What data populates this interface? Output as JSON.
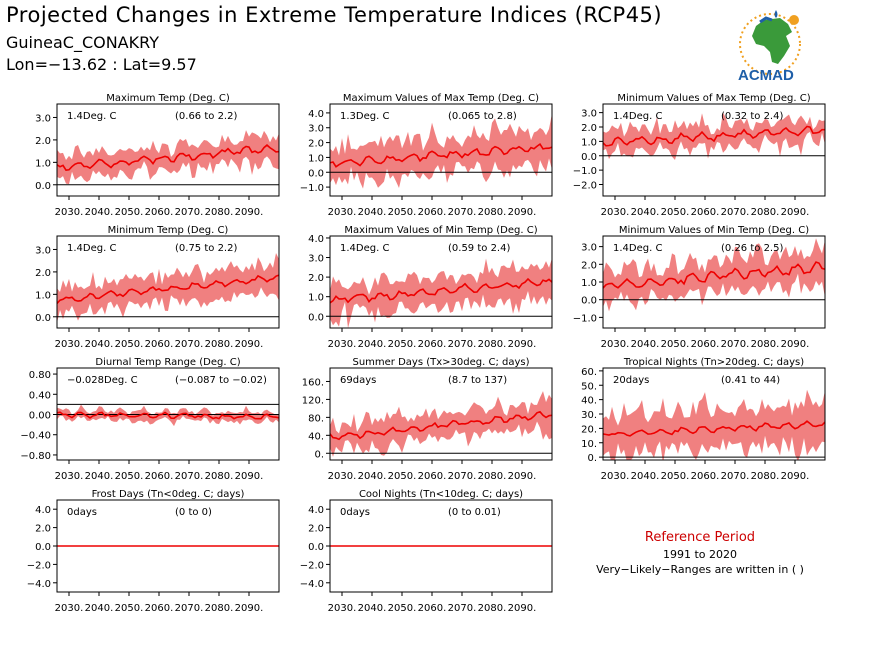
{
  "header": {
    "title": "Projected Changes in Extreme Temperature Indices (RCP45)",
    "station": "GuineaC_CONAKRY",
    "coords": "Lon=−13.62 : Lat=9.57"
  },
  "logo": {
    "text": "ACMAD",
    "icon": "africa-map-icon"
  },
  "reference": {
    "title": "Reference Period",
    "years": "1991 to 2020",
    "note": "Very−Likely−Ranges are written in ( )"
  },
  "colors": {
    "band": "#f08080",
    "line": "#ee0000",
    "zero": "#000000",
    "title_red": "#cc0000",
    "logo_blue": "#1f5fa8",
    "logo_green": "#3a9a3a",
    "logo_orange": "#f0a020"
  },
  "chart_data": [
    {
      "type": "area",
      "title": "Maximum Temp (Deg. C)",
      "median": "1.4Deg. C",
      "range": "(0.66 to 2.2)",
      "x_ticks": [
        "2030.",
        "2040.",
        "2050.",
        "2060.",
        "2070.",
        "2080.",
        "2090."
      ],
      "xlim": [
        2026,
        2100
      ],
      "ylim": [
        -0.5,
        3.6
      ],
      "y_ticks": [
        {
          "v": 0,
          "label": "0.0"
        },
        {
          "v": 1,
          "label": "1.0"
        },
        {
          "v": 2,
          "label": "2.0"
        },
        {
          "v": 3,
          "label": "3.0"
        }
      ],
      "start": 0.75,
      "end": 1.65,
      "wobble": 0.12,
      "width": 0.55,
      "noise": 0.25
    },
    {
      "type": "area",
      "title": "Maximum Values of Max Temp (Deg. C)",
      "median": "1.3Deg. C",
      "range": "(0.065 to 2.8)",
      "x_ticks": [
        "2030.",
        "2040.",
        "2050.",
        "2060.",
        "2070.",
        "2080.",
        "2090."
      ],
      "xlim": [
        2026,
        2100
      ],
      "ylim": [
        -1.6,
        4.6
      ],
      "y_ticks": [
        {
          "v": -1,
          "label": "−1.0"
        },
        {
          "v": 0,
          "label": "0.0"
        },
        {
          "v": 1,
          "label": "1.0"
        },
        {
          "v": 2,
          "label": "2.0"
        },
        {
          "v": 3,
          "label": "3.0"
        },
        {
          "v": 4,
          "label": "4.0"
        }
      ],
      "start": 0.6,
      "end": 1.7,
      "wobble": 0.2,
      "width": 1.2,
      "noise": 0.8
    },
    {
      "type": "area",
      "title": "Minimum Values of Max Temp (Deg. C)",
      "median": "1.4Deg. C",
      "range": "(0.32 to 2.4)",
      "x_ticks": [
        "2030.",
        "2040.",
        "2050.",
        "2060.",
        "2070.",
        "2080.",
        "2090."
      ],
      "xlim": [
        2026,
        2100
      ],
      "ylim": [
        -2.8,
        3.6
      ],
      "y_ticks": [
        {
          "v": -2,
          "label": "−2.0"
        },
        {
          "v": -1,
          "label": "−1.0"
        },
        {
          "v": 0,
          "label": "0.0"
        },
        {
          "v": 1,
          "label": "1.0"
        },
        {
          "v": 2,
          "label": "2.0"
        },
        {
          "v": 3,
          "label": "3.0"
        }
      ],
      "start": 0.9,
      "end": 1.8,
      "wobble": 0.2,
      "width": 0.8,
      "noise": 0.5
    },
    {
      "type": "area",
      "title": "Minimum Temp (Deg. C)",
      "median": "1.4Deg. C",
      "range": "(0.75 to 2.2)",
      "x_ticks": [
        "2030.",
        "2040.",
        "2050.",
        "2060.",
        "2070.",
        "2080.",
        "2090."
      ],
      "xlim": [
        2026,
        2100
      ],
      "ylim": [
        -0.5,
        3.6
      ],
      "y_ticks": [
        {
          "v": 0,
          "label": "0.0"
        },
        {
          "v": 1,
          "label": "1.0"
        },
        {
          "v": 2,
          "label": "2.0"
        },
        {
          "v": 3,
          "label": "3.0"
        }
      ],
      "start": 0.75,
      "end": 1.75,
      "wobble": 0.1,
      "width": 0.6,
      "noise": 0.3
    },
    {
      "type": "area",
      "title": "Maximum Values of Min Temp (Deg. C)",
      "median": "1.4Deg. C",
      "range": "(0.59 to 2.4)",
      "x_ticks": [
        "2030.",
        "2040.",
        "2050.",
        "2060.",
        "2070.",
        "2080.",
        "2090."
      ],
      "xlim": [
        2026,
        2100
      ],
      "ylim": [
        -0.6,
        4.1
      ],
      "y_ticks": [
        {
          "v": 0,
          "label": "0.0"
        },
        {
          "v": 1,
          "label": "1.0"
        },
        {
          "v": 2,
          "label": "2.0"
        },
        {
          "v": 3,
          "label": "3.0"
        },
        {
          "v": 4,
          "label": "4.0"
        }
      ],
      "start": 0.8,
      "end": 1.8,
      "wobble": 0.15,
      "width": 0.8,
      "noise": 0.4
    },
    {
      "type": "area",
      "title": "Minimum Values of Min Temp (Deg. C)",
      "median": "1.4Deg. C",
      "range": "(0.26 to 2.5)",
      "x_ticks": [
        "2030.",
        "2040.",
        "2050.",
        "2060.",
        "2070.",
        "2080.",
        "2090."
      ],
      "xlim": [
        2026,
        2100
      ],
      "ylim": [
        -1.6,
        3.6
      ],
      "y_ticks": [
        {
          "v": -1,
          "label": "−1.0"
        },
        {
          "v": 0,
          "label": "0.0"
        },
        {
          "v": 1,
          "label": "1.0"
        },
        {
          "v": 2,
          "label": "2.0"
        },
        {
          "v": 3,
          "label": "3.0"
        }
      ],
      "start": 0.8,
      "end": 1.85,
      "wobble": 0.2,
      "width": 0.9,
      "noise": 0.4
    },
    {
      "type": "area",
      "title": "Diurnal Temp Range (Deg. C)",
      "median": "−0.028Deg. C",
      "range": "(−0.087 to −0.02)",
      "x_ticks": [
        "2030.",
        "2040.",
        "2050.",
        "2060.",
        "2070.",
        "2080.",
        "2090."
      ],
      "xlim": [
        2026,
        2100
      ],
      "ylim": [
        -0.9,
        0.92
      ],
      "y_ticks": [
        {
          "v": -0.8,
          "label": "−0.80"
        },
        {
          "v": -0.4,
          "label": "−0.40"
        },
        {
          "v": 0,
          "label": "0.00"
        },
        {
          "v": 0.4,
          "label": "0.40"
        },
        {
          "v": 0.8,
          "label": "0.80"
        }
      ],
      "ref_line": 0.2,
      "start": 0.0,
      "end": -0.05,
      "wobble": 0.04,
      "width": 0.09,
      "noise": 0.07
    },
    {
      "type": "area",
      "title": "Summer Days (Tx>30deg. C; days)",
      "median": "69days",
      "range": "(8.7 to 137)",
      "x_ticks": [
        "2030.",
        "2040.",
        "2050.",
        "2060.",
        "2070.",
        "2080.",
        "2090."
      ],
      "xlim": [
        2026,
        2100
      ],
      "ylim": [
        -15,
        190
      ],
      "y_ticks": [
        {
          "v": 0,
          "label": "0."
        },
        {
          "v": 40,
          "label": "40."
        },
        {
          "v": 80,
          "label": "80."
        },
        {
          "v": 120,
          "label": "120."
        },
        {
          "v": 160,
          "label": "160."
        }
      ],
      "start": 35,
      "end": 88,
      "wobble": 5,
      "width": 30,
      "noise": 18
    },
    {
      "type": "area",
      "title": "Tropical Nights (Tn>20deg. C; days)",
      "median": "20days",
      "range": "(0.41 to 44)",
      "x_ticks": [
        "2030.",
        "2040.",
        "2050.",
        "2060.",
        "2070.",
        "2080.",
        "2090."
      ],
      "xlim": [
        2026,
        2100
      ],
      "ylim": [
        -2,
        62
      ],
      "y_ticks": [
        {
          "v": 0,
          "label": "0."
        },
        {
          "v": 10,
          "label": "10."
        },
        {
          "v": 20,
          "label": "20."
        },
        {
          "v": 30,
          "label": "30."
        },
        {
          "v": 40,
          "label": "40."
        },
        {
          "v": 50,
          "label": "50."
        },
        {
          "v": 60,
          "label": "60."
        }
      ],
      "start": 16,
      "end": 23,
      "wobble": 1.5,
      "width": 14,
      "noise": 4
    },
    {
      "type": "area",
      "title": "Frost Days (Tn<0deg. C; days)",
      "median": "0days",
      "range": "(0 to 0)",
      "x_ticks": [
        "2030.",
        "2040.",
        "2050.",
        "2060.",
        "2070.",
        "2080.",
        "2090."
      ],
      "xlim": [
        2026,
        2100
      ],
      "ylim": [
        -5,
        5
      ],
      "y_ticks": [
        {
          "v": -4,
          "label": "−4.0"
        },
        {
          "v": -2,
          "label": "−2.0"
        },
        {
          "v": 0,
          "label": "0.0"
        },
        {
          "v": 2,
          "label": "2.0"
        },
        {
          "v": 4,
          "label": "4.0"
        }
      ],
      "start": 0,
      "end": 0,
      "wobble": 0,
      "width": 0,
      "noise": 0
    },
    {
      "type": "area",
      "title": "Cool Nights (Tn<10deg. C; days)",
      "median": "0days",
      "range": "(0 to 0.01)",
      "x_ticks": [
        "2030.",
        "2040.",
        "2050.",
        "2060.",
        "2070.",
        "2080.",
        "2090."
      ],
      "xlim": [
        2026,
        2100
      ],
      "ylim": [
        -5,
        5
      ],
      "y_ticks": [
        {
          "v": -4,
          "label": "−4.0"
        },
        {
          "v": -2,
          "label": "−2.0"
        },
        {
          "v": 0,
          "label": "0.0"
        },
        {
          "v": 2,
          "label": "2.0"
        },
        {
          "v": 4,
          "label": "4.0"
        }
      ],
      "start": 0,
      "end": 0,
      "wobble": 0,
      "width": 0,
      "noise": 0
    }
  ]
}
